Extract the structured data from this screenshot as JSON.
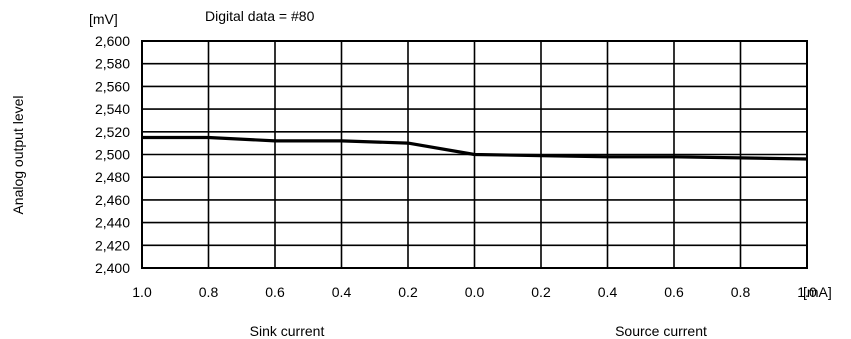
{
  "chart_data": {
    "type": "line",
    "title": "Digital data = #80",
    "ylabel": "Analog output level",
    "yunit": "[mV]",
    "xunit": "[mA]",
    "x_tick_labels": [
      "1.0",
      "0.8",
      "0.6",
      "0.4",
      "0.2",
      "0.0",
      "0.2",
      "0.4",
      "0.6",
      "0.8",
      "1.0"
    ],
    "x_signed": [
      -1.0,
      -0.8,
      -0.6,
      -0.4,
      -0.2,
      0.0,
      0.2,
      0.4,
      0.6,
      0.8,
      1.0
    ],
    "x_region_labels": [
      "Sink current",
      "Source current"
    ],
    "y_tick_labels": [
      "2,600",
      "2,580",
      "2,560",
      "2,540",
      "2,520",
      "2,500",
      "2,480",
      "2,460",
      "2,440",
      "2,420",
      "2,400"
    ],
    "ylim": [
      2400,
      2600
    ],
    "grid": true,
    "series": [
      {
        "x": [
          -1.0,
          -0.8,
          -0.6,
          -0.4,
          -0.2,
          0.0,
          0.2,
          0.4,
          0.6,
          0.8,
          1.0
        ],
        "values": [
          2515,
          2515,
          2512,
          2512,
          2510,
          2500,
          2499,
          2498,
          2498,
          2497,
          2496
        ]
      }
    ],
    "colors": {
      "line": "#000000",
      "grid": "#000000"
    }
  }
}
